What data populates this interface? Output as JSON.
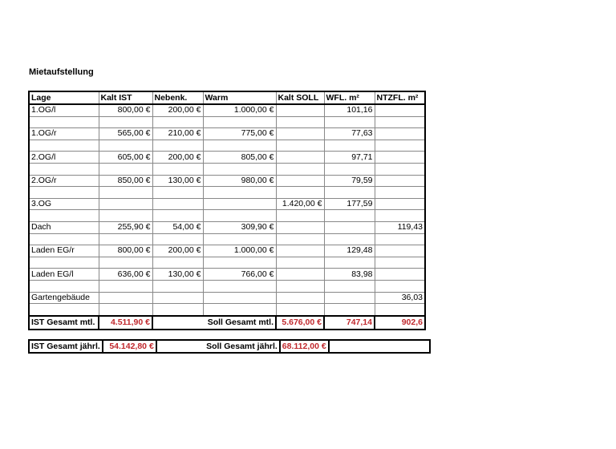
{
  "title": "Mietaufstellung",
  "headers": [
    "Lage",
    "Kalt IST",
    "Nebenk.",
    "Warm",
    "Kalt SOLL",
    "WFL. m²",
    "NTZFL. m²"
  ],
  "rows": [
    [
      "1.OG/l",
      "800,00 €",
      "200,00 €",
      "1.000,00 €",
      "",
      "101,16",
      ""
    ],
    [
      "1.OG/r",
      "565,00 €",
      "210,00 €",
      "775,00 €",
      "",
      "77,63",
      ""
    ],
    [
      "2.OG/l",
      "605,00 €",
      "200,00 €",
      "805,00 €",
      "",
      "97,71",
      ""
    ],
    [
      "2.OG/r",
      "850,00 €",
      "130,00 €",
      "980,00 €",
      "",
      "79,59",
      ""
    ],
    [
      "3.OG",
      "",
      "",
      "",
      "1.420,00 €",
      "177,59",
      ""
    ],
    [
      "Dach",
      "255,90 €",
      "54,00 €",
      "309,90 €",
      "",
      "",
      "119,43"
    ],
    [
      "Laden EG/r",
      "800,00 €",
      "200,00 €",
      "1.000,00 €",
      "",
      "129,48",
      ""
    ],
    [
      "Laden EG/l",
      "636,00 €",
      "130,00 €",
      "766,00 €",
      "",
      "83,98",
      ""
    ],
    [
      "Gartengebäude",
      "",
      "",
      "",
      "",
      "",
      "36,03"
    ]
  ],
  "monthly": {
    "ist_label": "IST Gesamt mtl.",
    "ist_value": "4.511,90 €",
    "soll_label": "Soll Gesamt mtl.",
    "soll_value": "5.676,00 €",
    "wfl_total": "747,14",
    "ntzfl_total": "902,6"
  },
  "yearly": {
    "ist_label": "IST Gesamt jährl.",
    "ist_value": "54.142,80 €",
    "soll_label": "Soll Gesamt jährl.",
    "soll_value": "68.112,00 €"
  },
  "colors": {
    "totals": "#c0282d"
  }
}
